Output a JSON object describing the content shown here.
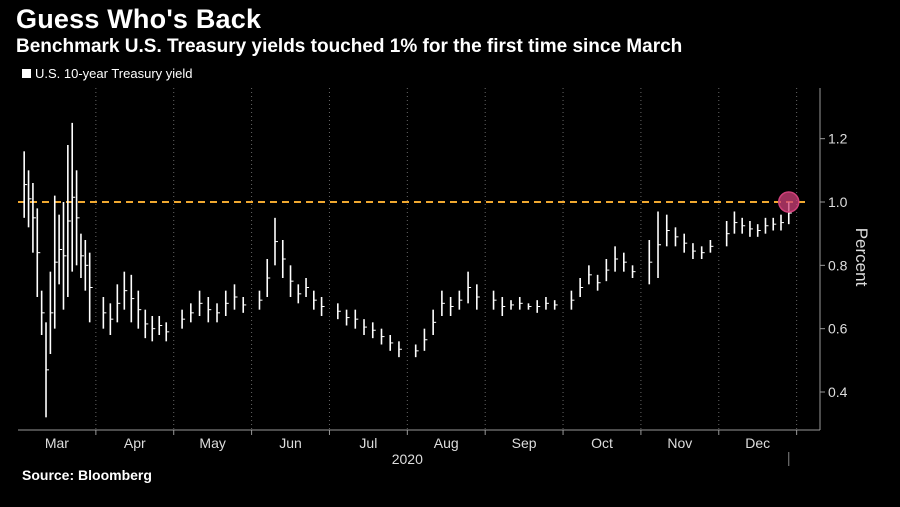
{
  "title": "Guess Who's Back",
  "subtitle": "Benchmark U.S. Treasury yields touched 1% for the first time since March",
  "source": "Source: Bloomberg",
  "colors": {
    "background": "#000000",
    "series": "#ffffff",
    "reference_line": "#f0a830",
    "highlight": "#d0407a"
  },
  "chart_data": {
    "type": "ohlc",
    "title": "Guess Who's Back",
    "subtitle": "Benchmark U.S. Treasury yields touched 1% for the first time since March",
    "ylabel": "Percent",
    "xlabel": "2020",
    "ylim": [
      0.28,
      1.36
    ],
    "yticks": [
      0.4,
      0.6,
      0.8,
      1.0,
      1.2
    ],
    "ytick_labels": [
      "0.4",
      "0.6",
      "0.8",
      "1.0",
      "1.2"
    ],
    "y_axis_side": "right",
    "grid": "vertical-dotted",
    "legend": "top-left",
    "x_months": [
      "Mar",
      "Apr",
      "May",
      "Jun",
      "Jul",
      "Aug",
      "Sep",
      "Oct",
      "Nov",
      "Dec"
    ],
    "x_year": "2020",
    "reference_line": {
      "value": 1.0,
      "style": "dashed"
    },
    "highlight_point": {
      "month": "Dec",
      "value": 1.0
    },
    "series": [
      {
        "name": "U.S. 10-year Treasury yield",
        "points": [
          [
            "Mar",
            1.16,
            0.95
          ],
          [
            "Mar",
            1.1,
            0.92
          ],
          [
            "Mar",
            1.06,
            0.84
          ],
          [
            "Mar",
            0.98,
            0.7
          ],
          [
            "Mar",
            0.72,
            0.58
          ],
          [
            "Mar",
            0.62,
            0.32
          ],
          [
            "Mar",
            0.78,
            0.52
          ],
          [
            "Mar",
            1.02,
            0.6
          ],
          [
            "Mar",
            0.96,
            0.74
          ],
          [
            "Mar",
            1.0,
            0.66
          ],
          [
            "Mar",
            1.18,
            0.7
          ],
          [
            "Mar",
            1.25,
            0.78
          ],
          [
            "Mar",
            1.1,
            0.8
          ],
          [
            "Mar",
            0.9,
            0.76
          ],
          [
            "Mar",
            0.88,
            0.72
          ],
          [
            "Mar",
            0.84,
            0.62
          ],
          [
            "Apr",
            0.7,
            0.6
          ],
          [
            "Apr",
            0.68,
            0.58
          ],
          [
            "Apr",
            0.74,
            0.62
          ],
          [
            "Apr",
            0.78,
            0.66
          ],
          [
            "Apr",
            0.77,
            0.62
          ],
          [
            "Apr",
            0.72,
            0.6
          ],
          [
            "Apr",
            0.66,
            0.57
          ],
          [
            "Apr",
            0.64,
            0.56
          ],
          [
            "Apr",
            0.64,
            0.58
          ],
          [
            "Apr",
            0.62,
            0.56
          ],
          [
            "May",
            0.66,
            0.6
          ],
          [
            "May",
            0.68,
            0.62
          ],
          [
            "May",
            0.72,
            0.64
          ],
          [
            "May",
            0.7,
            0.62
          ],
          [
            "May",
            0.68,
            0.62
          ],
          [
            "May",
            0.72,
            0.64
          ],
          [
            "May",
            0.74,
            0.66
          ],
          [
            "May",
            0.7,
            0.65
          ],
          [
            "Jun",
            0.72,
            0.66
          ],
          [
            "Jun",
            0.82,
            0.7
          ],
          [
            "Jun",
            0.95,
            0.8
          ],
          [
            "Jun",
            0.88,
            0.76
          ],
          [
            "Jun",
            0.8,
            0.7
          ],
          [
            "Jun",
            0.74,
            0.68
          ],
          [
            "Jun",
            0.76,
            0.7
          ],
          [
            "Jun",
            0.72,
            0.66
          ],
          [
            "Jun",
            0.7,
            0.64
          ],
          [
            "Jul",
            0.68,
            0.63
          ],
          [
            "Jul",
            0.66,
            0.61
          ],
          [
            "Jul",
            0.66,
            0.6
          ],
          [
            "Jul",
            0.63,
            0.58
          ],
          [
            "Jul",
            0.62,
            0.57
          ],
          [
            "Jul",
            0.6,
            0.55
          ],
          [
            "Jul",
            0.58,
            0.53
          ],
          [
            "Jul",
            0.56,
            0.51
          ],
          [
            "Aug",
            0.55,
            0.51
          ],
          [
            "Aug",
            0.6,
            0.53
          ],
          [
            "Aug",
            0.66,
            0.58
          ],
          [
            "Aug",
            0.72,
            0.64
          ],
          [
            "Aug",
            0.7,
            0.64
          ],
          [
            "Aug",
            0.72,
            0.66
          ],
          [
            "Aug",
            0.78,
            0.68
          ],
          [
            "Aug",
            0.74,
            0.66
          ],
          [
            "Sep",
            0.72,
            0.66
          ],
          [
            "Sep",
            0.7,
            0.64
          ],
          [
            "Sep",
            0.69,
            0.66
          ],
          [
            "Sep",
            0.7,
            0.66
          ],
          [
            "Sep",
            0.68,
            0.66
          ],
          [
            "Sep",
            0.69,
            0.65
          ],
          [
            "Sep",
            0.7,
            0.66
          ],
          [
            "Sep",
            0.69,
            0.66
          ],
          [
            "Oct",
            0.72,
            0.66
          ],
          [
            "Oct",
            0.76,
            0.7
          ],
          [
            "Oct",
            0.8,
            0.74
          ],
          [
            "Oct",
            0.77,
            0.72
          ],
          [
            "Oct",
            0.82,
            0.75
          ],
          [
            "Oct",
            0.86,
            0.78
          ],
          [
            "Oct",
            0.84,
            0.78
          ],
          [
            "Oct",
            0.8,
            0.76
          ],
          [
            "Nov",
            0.88,
            0.74
          ],
          [
            "Nov",
            0.97,
            0.76
          ],
          [
            "Nov",
            0.96,
            0.86
          ],
          [
            "Nov",
            0.92,
            0.86
          ],
          [
            "Nov",
            0.9,
            0.84
          ],
          [
            "Nov",
            0.87,
            0.82
          ],
          [
            "Nov",
            0.86,
            0.82
          ],
          [
            "Nov",
            0.88,
            0.84
          ],
          [
            "Dec",
            0.94,
            0.86
          ],
          [
            "Dec",
            0.97,
            0.9
          ],
          [
            "Dec",
            0.95,
            0.9
          ],
          [
            "Dec",
            0.94,
            0.89
          ],
          [
            "Dec",
            0.93,
            0.89
          ],
          [
            "Dec",
            0.95,
            0.9
          ],
          [
            "Dec",
            0.95,
            0.91
          ],
          [
            "Dec",
            0.96,
            0.91
          ],
          [
            "Dec",
            1.0,
            0.93
          ]
        ]
      }
    ]
  }
}
